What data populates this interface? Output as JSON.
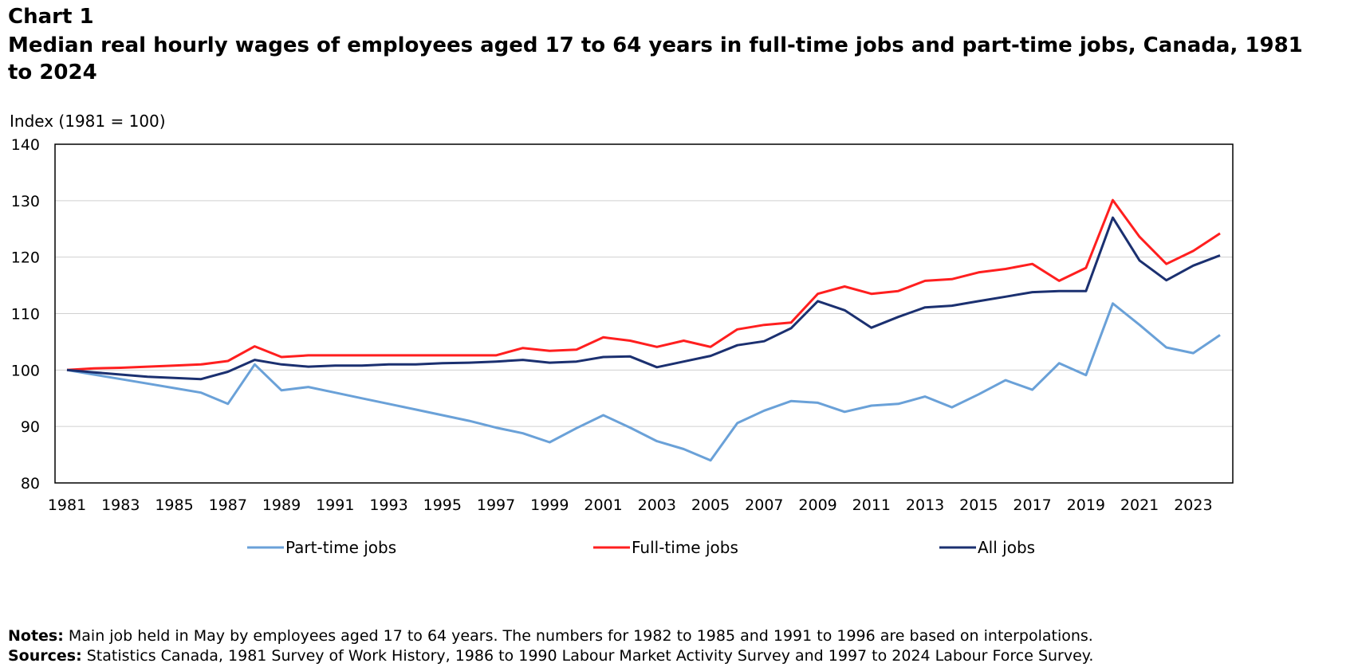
{
  "header": {
    "label": "Chart 1",
    "title": "Median real hourly wages of employees aged 17 to 64 years in full-time jobs and part-time jobs, Canada, 1981 to 2024"
  },
  "chart_data": {
    "type": "line",
    "ylabel": "Index (1981 = 100)",
    "xlabel": "",
    "ylim": [
      80,
      140
    ],
    "yticks": [
      80,
      90,
      100,
      110,
      120,
      130,
      140
    ],
    "xlim": [
      1981,
      2024
    ],
    "xticks": [
      "1981",
      "1983",
      "1985",
      "1987",
      "1989",
      "1991",
      "1993",
      "1995",
      "1997",
      "1999",
      "2001",
      "2003",
      "2005",
      "2007",
      "2009",
      "2011",
      "2013",
      "2015",
      "2017",
      "2019",
      "2021",
      "2023"
    ],
    "grid": true,
    "legend_position": "bottom",
    "x": [
      1981,
      1982,
      1983,
      1984,
      1985,
      1986,
      1987,
      1988,
      1989,
      1990,
      1991,
      1992,
      1993,
      1994,
      1995,
      1996,
      1997,
      1998,
      1999,
      2000,
      2001,
      2002,
      2003,
      2004,
      2005,
      2006,
      2007,
      2008,
      2009,
      2010,
      2011,
      2012,
      2013,
      2014,
      2015,
      2016,
      2017,
      2018,
      2019,
      2020,
      2021,
      2022,
      2023,
      2024
    ],
    "series": [
      {
        "name": "Part-time jobs",
        "color": "#6aa1d8",
        "values": [
          100,
          99.2,
          98.4,
          97.6,
          96.8,
          96,
          94,
          101,
          96.4,
          97,
          96,
          95,
          94,
          93,
          92,
          91,
          89.8,
          88.8,
          87.2,
          89.7,
          92,
          89.8,
          87.4,
          86,
          84,
          90.6,
          92.8,
          94.5,
          94.2,
          92.6,
          93.7,
          94,
          95.3,
          93.4,
          95.7,
          98.2,
          96.5,
          101.2,
          99.1,
          111.8,
          108,
          104,
          103,
          106.2
        ]
      },
      {
        "name": "Full-time jobs",
        "color": "#ff1f1f",
        "values": [
          100,
          100.3,
          100.4,
          100.6,
          100.8,
          101,
          101.6,
          104.2,
          102.3,
          102.6,
          102.6,
          102.6,
          102.6,
          102.6,
          102.6,
          102.6,
          102.6,
          103.9,
          103.4,
          103.6,
          105.8,
          105.2,
          104.1,
          105.2,
          104.1,
          107.2,
          108,
          108.4,
          113.5,
          114.8,
          113.5,
          114,
          115.8,
          116.1,
          117.3,
          117.9,
          118.8,
          115.8,
          118.1,
          130.1,
          123.6,
          118.8,
          121.1,
          124.2
        ]
      },
      {
        "name": "All jobs",
        "color": "#1b3070",
        "values": [
          100,
          99.6,
          99.2,
          98.8,
          98.6,
          98.4,
          99.7,
          101.8,
          101,
          100.6,
          100.8,
          100.8,
          101,
          101,
          101.2,
          101.3,
          101.5,
          101.8,
          101.3,
          101.5,
          102.3,
          102.4,
          100.5,
          101.5,
          102.5,
          104.4,
          105.1,
          107.4,
          112.2,
          110.6,
          107.5,
          109.4,
          111.1,
          111.4,
          112.2,
          113,
          113.8,
          114,
          114,
          127,
          119.4,
          115.9,
          118.5,
          120.3
        ]
      }
    ]
  },
  "notes": {
    "notes_label": "Notes:",
    "notes_text": " Main job held in May by employees aged 17 to 64 years. The numbers for 1982 to 1985 and 1991 to 1996 are based on interpolations.",
    "sources_label": "Sources:",
    "sources_text": " Statistics Canada, 1981 Survey of Work History, 1986 to 1990 Labour Market Activity Survey and 1997 to 2024 Labour Force Survey."
  }
}
